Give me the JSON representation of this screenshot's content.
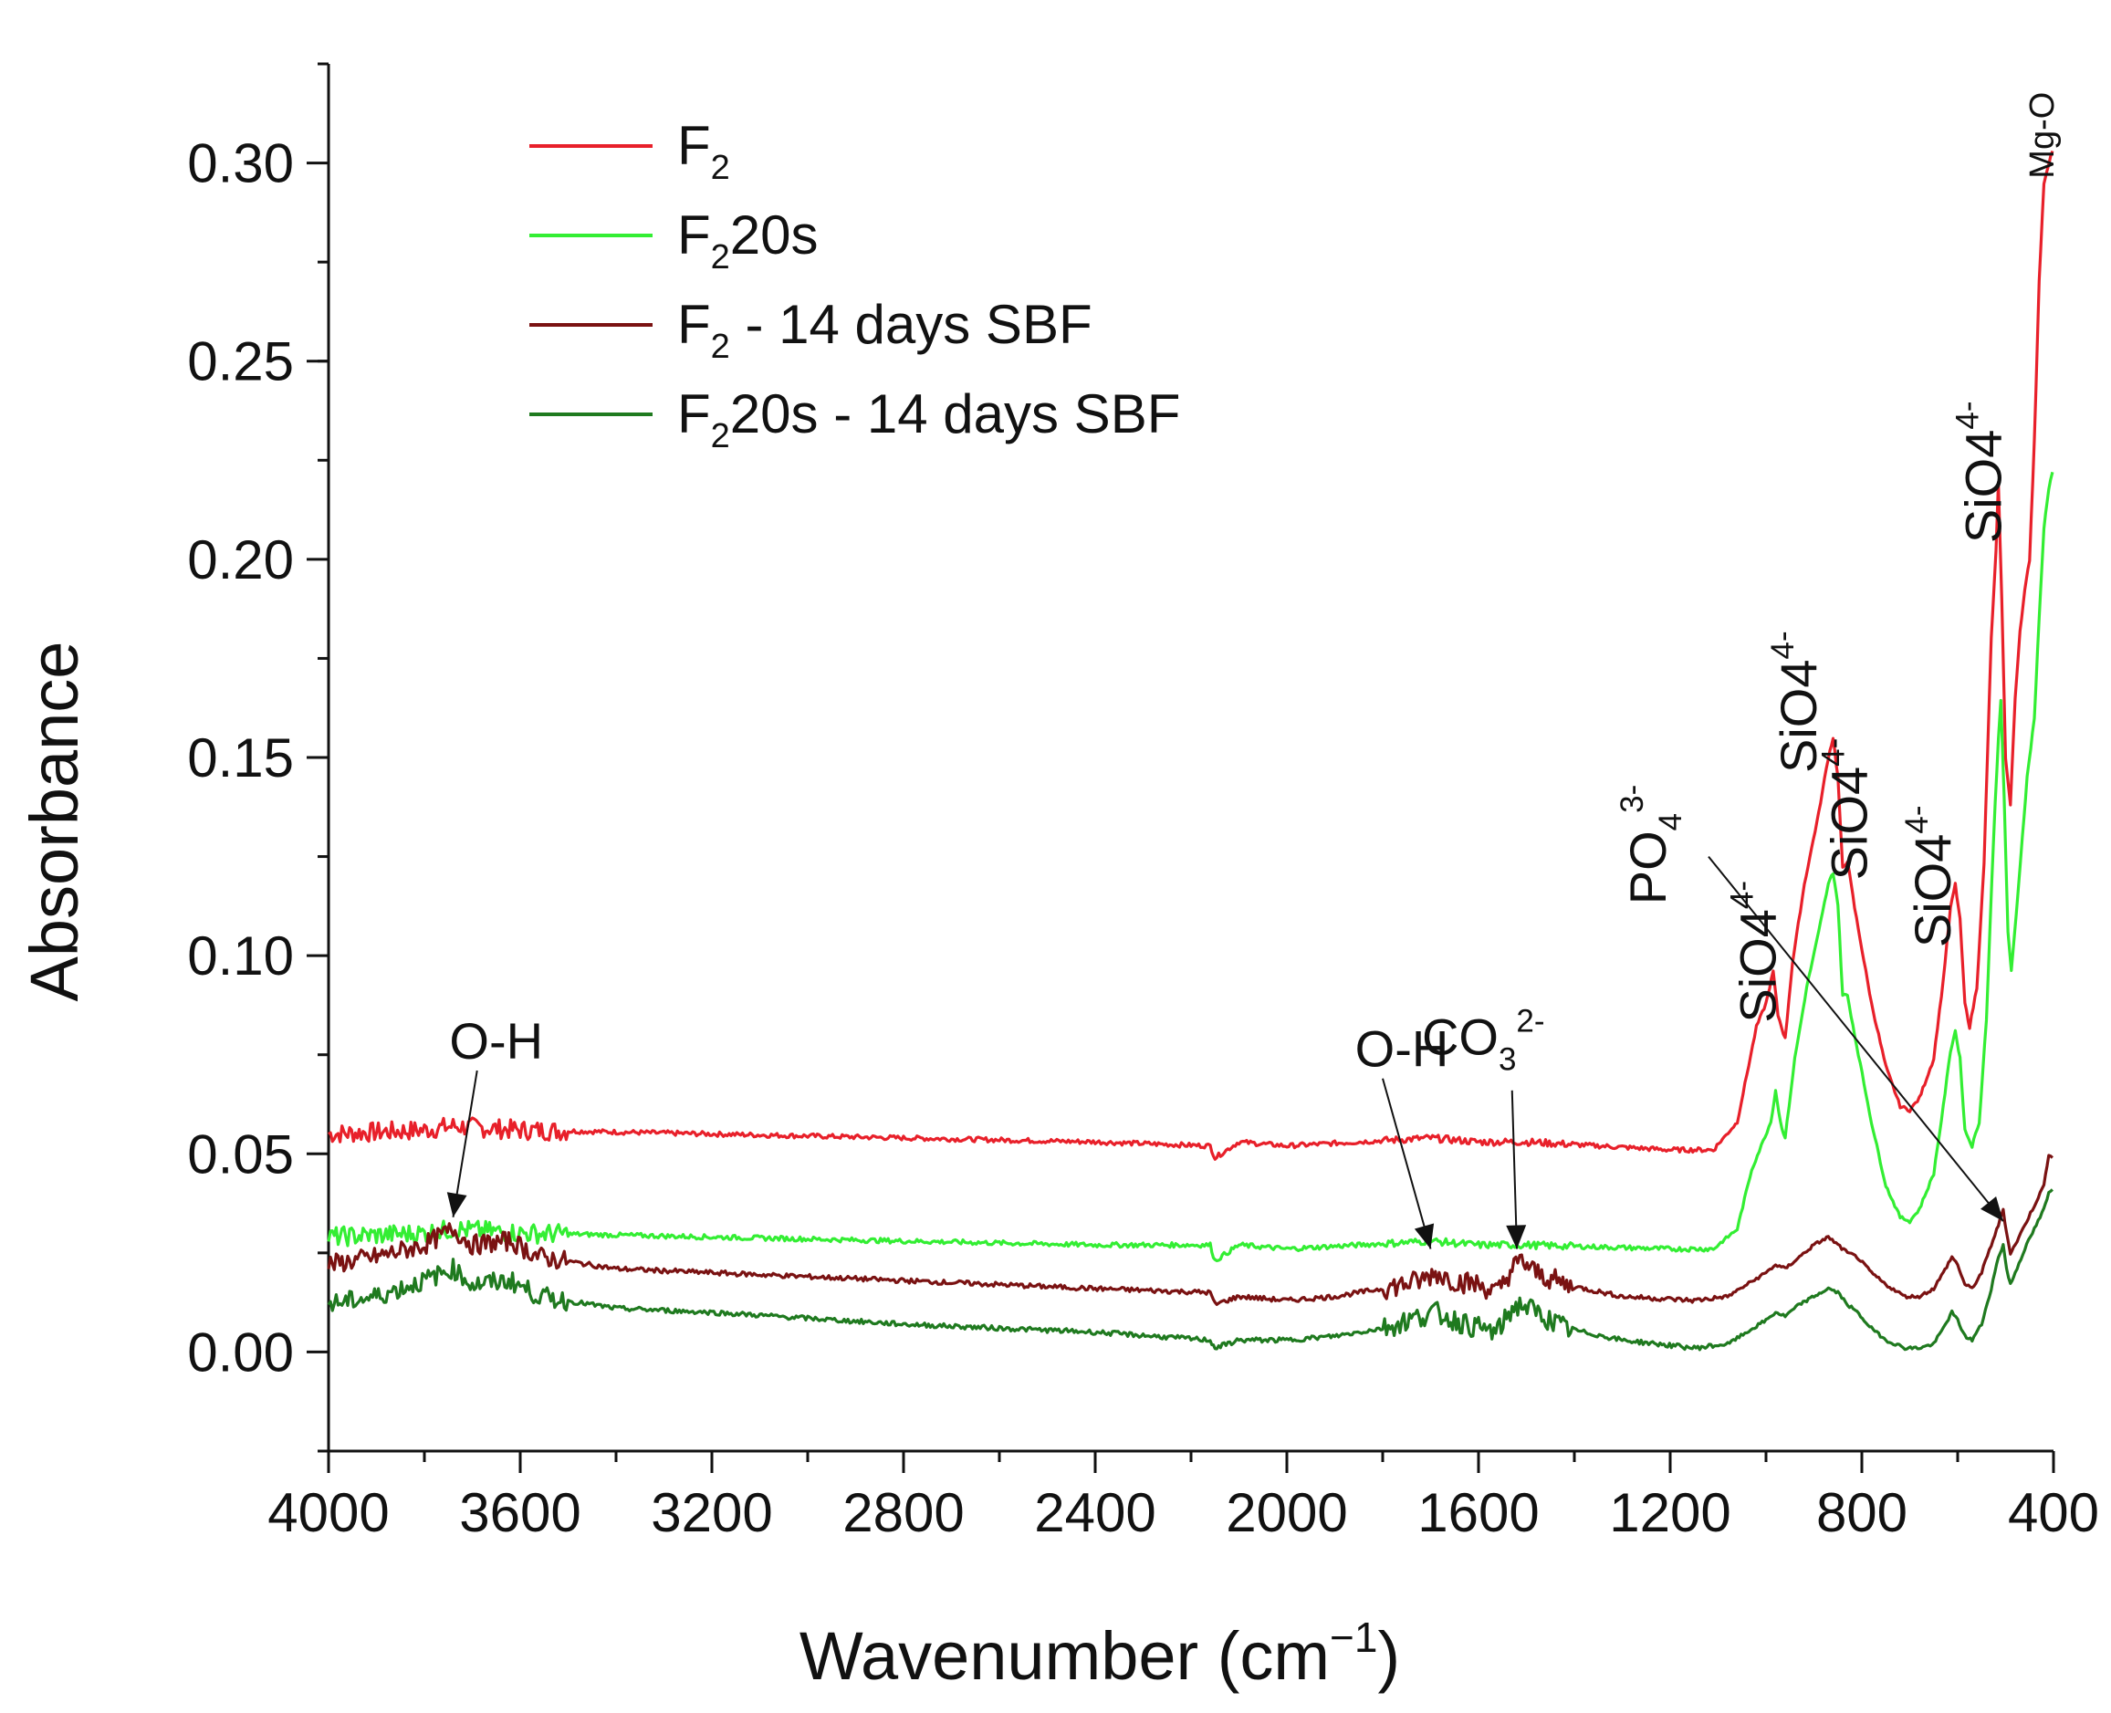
{
  "chart_data": {
    "type": "line",
    "title": "",
    "xlabel": "Wavenumber (cm",
    "xlabel_sup": "−1",
    "xlabel_close": ")",
    "ylabel": "Absorbance",
    "xlim": [
      4000,
      400
    ],
    "ylim": [
      -0.025,
      0.325
    ],
    "x_ticks": [
      4000,
      3600,
      3200,
      2800,
      2400,
      2000,
      1600,
      1200,
      800,
      400
    ],
    "x_tick_labels": [
      "4000",
      "3600",
      "3200",
      "2800",
      "2400",
      "2000",
      "1600",
      "1200",
      "800",
      "400"
    ],
    "y_ticks": [
      0.0,
      0.05,
      0.1,
      0.15,
      0.2,
      0.25,
      0.3
    ],
    "y_tick_labels": [
      "0.00",
      "0.05",
      "0.10",
      "0.15",
      "0.20",
      "0.25",
      "0.30"
    ],
    "legend_position": "top-left",
    "series": [
      {
        "name": "F2",
        "legend_main": "F",
        "legend_sub": "2",
        "legend_rest": "",
        "color": "#e8202a",
        "points": [
          [
            4000,
            0.055
          ],
          [
            3800,
            0.056
          ],
          [
            3740,
            0.057
          ],
          [
            3600,
            0.056
          ],
          [
            3200,
            0.055
          ],
          [
            2800,
            0.054
          ],
          [
            2400,
            0.053
          ],
          [
            2160,
            0.052
          ],
          [
            2150,
            0.049
          ],
          [
            2100,
            0.053
          ],
          [
            2000,
            0.052
          ],
          [
            1700,
            0.054
          ],
          [
            1600,
            0.053
          ],
          [
            1500,
            0.053
          ],
          [
            1200,
            0.051
          ],
          [
            1110,
            0.051
          ],
          [
            1060,
            0.058
          ],
          [
            1020,
            0.082
          ],
          [
            1000,
            0.088
          ],
          [
            985,
            0.096
          ],
          [
            975,
            0.085
          ],
          [
            960,
            0.079
          ],
          [
            945,
            0.098
          ],
          [
            920,
            0.118
          ],
          [
            890,
            0.136
          ],
          [
            870,
            0.15
          ],
          [
            860,
            0.155
          ],
          [
            850,
            0.145
          ],
          [
            840,
            0.122
          ],
          [
            830,
            0.124
          ],
          [
            815,
            0.112
          ],
          [
            780,
            0.088
          ],
          [
            750,
            0.072
          ],
          [
            720,
            0.062
          ],
          [
            700,
            0.061
          ],
          [
            680,
            0.064
          ],
          [
            650,
            0.074
          ],
          [
            630,
            0.094
          ],
          [
            615,
            0.112
          ],
          [
            605,
            0.118
          ],
          [
            595,
            0.109
          ],
          [
            585,
            0.088
          ],
          [
            575,
            0.082
          ],
          [
            560,
            0.092
          ],
          [
            545,
            0.123
          ],
          [
            530,
            0.18
          ],
          [
            520,
            0.202
          ],
          [
            515,
            0.219
          ],
          [
            508,
            0.19
          ],
          [
            500,
            0.15
          ],
          [
            490,
            0.138
          ],
          [
            480,
            0.165
          ],
          [
            470,
            0.182
          ],
          [
            460,
            0.192
          ],
          [
            450,
            0.2
          ],
          [
            440,
            0.23
          ],
          [
            430,
            0.27
          ],
          [
            420,
            0.295
          ],
          [
            410,
            0.3
          ],
          [
            402,
            0.303
          ]
        ]
      },
      {
        "name": "F220s",
        "legend_main": "F",
        "legend_sub": "2",
        "legend_rest": "20s",
        "color": "#33ee33",
        "points": [
          [
            4000,
            0.029
          ],
          [
            3800,
            0.03
          ],
          [
            3740,
            0.031
          ],
          [
            3600,
            0.03
          ],
          [
            3200,
            0.029
          ],
          [
            2800,
            0.028
          ],
          [
            2400,
            0.027
          ],
          [
            2160,
            0.027
          ],
          [
            2150,
            0.023
          ],
          [
            2100,
            0.027
          ],
          [
            2000,
            0.026
          ],
          [
            1700,
            0.028
          ],
          [
            1600,
            0.027
          ],
          [
            1500,
            0.027
          ],
          [
            1200,
            0.026
          ],
          [
            1110,
            0.026
          ],
          [
            1060,
            0.031
          ],
          [
            1030,
            0.046
          ],
          [
            1010,
            0.052
          ],
          [
            990,
            0.058
          ],
          [
            980,
            0.066
          ],
          [
            970,
            0.058
          ],
          [
            960,
            0.054
          ],
          [
            940,
            0.074
          ],
          [
            915,
            0.092
          ],
          [
            890,
            0.106
          ],
          [
            870,
            0.118
          ],
          [
            860,
            0.121
          ],
          [
            850,
            0.113
          ],
          [
            840,
            0.09
          ],
          [
            830,
            0.09
          ],
          [
            815,
            0.08
          ],
          [
            780,
            0.058
          ],
          [
            750,
            0.042
          ],
          [
            720,
            0.034
          ],
          [
            700,
            0.033
          ],
          [
            680,
            0.036
          ],
          [
            650,
            0.045
          ],
          [
            630,
            0.062
          ],
          [
            615,
            0.076
          ],
          [
            605,
            0.081
          ],
          [
            595,
            0.074
          ],
          [
            585,
            0.056
          ],
          [
            570,
            0.052
          ],
          [
            555,
            0.058
          ],
          [
            540,
            0.084
          ],
          [
            525,
            0.13
          ],
          [
            515,
            0.155
          ],
          [
            510,
            0.164
          ],
          [
            503,
            0.14
          ],
          [
            495,
            0.106
          ],
          [
            488,
            0.096
          ],
          [
            478,
            0.11
          ],
          [
            465,
            0.13
          ],
          [
            455,
            0.145
          ],
          [
            440,
            0.16
          ],
          [
            430,
            0.185
          ],
          [
            420,
            0.208
          ],
          [
            410,
            0.218
          ],
          [
            402,
            0.222
          ]
        ]
      },
      {
        "name": "F2 - 14 days SBF",
        "legend_main": "F",
        "legend_sub": "2",
        "legend_rest": " - 14 days SBF",
        "color": "#7a1212",
        "points": [
          [
            4000,
            0.022
          ],
          [
            3900,
            0.024
          ],
          [
            3800,
            0.027
          ],
          [
            3740,
            0.031
          ],
          [
            3700,
            0.027
          ],
          [
            3620,
            0.028
          ],
          [
            3560,
            0.024
          ],
          [
            3400,
            0.021
          ],
          [
            3200,
            0.02
          ],
          [
            2800,
            0.018
          ],
          [
            2400,
            0.016
          ],
          [
            2160,
            0.015
          ],
          [
            2150,
            0.012
          ],
          [
            2100,
            0.014
          ],
          [
            2000,
            0.013
          ],
          [
            1900,
            0.014
          ],
          [
            1800,
            0.016
          ],
          [
            1720,
            0.018
          ],
          [
            1690,
            0.02
          ],
          [
            1650,
            0.018
          ],
          [
            1600,
            0.017
          ],
          [
            1560,
            0.015
          ],
          [
            1530,
            0.021
          ],
          [
            1510,
            0.023
          ],
          [
            1480,
            0.02
          ],
          [
            1420,
            0.017
          ],
          [
            1300,
            0.014
          ],
          [
            1150,
            0.013
          ],
          [
            1080,
            0.014
          ],
          [
            1040,
            0.017
          ],
          [
            1000,
            0.02
          ],
          [
            980,
            0.022
          ],
          [
            960,
            0.021
          ],
          [
            930,
            0.024
          ],
          [
            900,
            0.027
          ],
          [
            870,
            0.029
          ],
          [
            850,
            0.027
          ],
          [
            830,
            0.025
          ],
          [
            810,
            0.024
          ],
          [
            780,
            0.02
          ],
          [
            750,
            0.017
          ],
          [
            710,
            0.014
          ],
          [
            680,
            0.014
          ],
          [
            650,
            0.016
          ],
          [
            630,
            0.02
          ],
          [
            612,
            0.024
          ],
          [
            600,
            0.022
          ],
          [
            585,
            0.017
          ],
          [
            570,
            0.016
          ],
          [
            550,
            0.02
          ],
          [
            530,
            0.027
          ],
          [
            515,
            0.032
          ],
          [
            505,
            0.036
          ],
          [
            498,
            0.03
          ],
          [
            490,
            0.025
          ],
          [
            480,
            0.027
          ],
          [
            460,
            0.032
          ],
          [
            440,
            0.037
          ],
          [
            420,
            0.042
          ],
          [
            410,
            0.05
          ],
          [
            402,
            0.049
          ]
        ]
      },
      {
        "name": "F220s - 14 days SBF",
        "legend_main": "F",
        "legend_sub": "2",
        "legend_rest": "20s - 14 days SBF",
        "color": "#1f7a1f",
        "points": [
          [
            4000,
            0.012
          ],
          [
            3900,
            0.014
          ],
          [
            3800,
            0.018
          ],
          [
            3740,
            0.021
          ],
          [
            3700,
            0.017
          ],
          [
            3620,
            0.018
          ],
          [
            3560,
            0.014
          ],
          [
            3400,
            0.011
          ],
          [
            3200,
            0.01
          ],
          [
            2800,
            0.007
          ],
          [
            2400,
            0.005
          ],
          [
            2160,
            0.003
          ],
          [
            2150,
            0.001
          ],
          [
            2100,
            0.003
          ],
          [
            2000,
            0.003
          ],
          [
            1900,
            0.004
          ],
          [
            1800,
            0.006
          ],
          [
            1720,
            0.009
          ],
          [
            1690,
            0.01
          ],
          [
            1650,
            0.008
          ],
          [
            1600,
            0.006
          ],
          [
            1560,
            0.005
          ],
          [
            1530,
            0.011
          ],
          [
            1510,
            0.012
          ],
          [
            1480,
            0.01
          ],
          [
            1420,
            0.006
          ],
          [
            1300,
            0.003
          ],
          [
            1150,
            0.001
          ],
          [
            1080,
            0.002
          ],
          [
            1040,
            0.005
          ],
          [
            1000,
            0.008
          ],
          [
            980,
            0.01
          ],
          [
            960,
            0.009
          ],
          [
            930,
            0.012
          ],
          [
            900,
            0.014
          ],
          [
            870,
            0.016
          ],
          [
            850,
            0.015
          ],
          [
            830,
            0.012
          ],
          [
            810,
            0.01
          ],
          [
            780,
            0.006
          ],
          [
            750,
            0.003
          ],
          [
            710,
            0.001
          ],
          [
            680,
            0.001
          ],
          [
            650,
            0.002
          ],
          [
            630,
            0.006
          ],
          [
            612,
            0.01
          ],
          [
            600,
            0.008
          ],
          [
            585,
            0.004
          ],
          [
            570,
            0.003
          ],
          [
            550,
            0.007
          ],
          [
            530,
            0.016
          ],
          [
            515,
            0.024
          ],
          [
            505,
            0.027
          ],
          [
            498,
            0.021
          ],
          [
            490,
            0.017
          ],
          [
            480,
            0.02
          ],
          [
            460,
            0.026
          ],
          [
            440,
            0.031
          ],
          [
            420,
            0.036
          ],
          [
            410,
            0.04
          ],
          [
            402,
            0.041
          ]
        ]
      }
    ],
    "annotations": [
      {
        "id": "oh-1",
        "text": "O-H",
        "sub": "",
        "sup": "",
        "x": 3650,
        "y": 0.074,
        "rotate": false,
        "arrow": {
          "from": [
            3690,
            0.071
          ],
          "to": [
            3740,
            0.034
          ]
        }
      },
      {
        "id": "oh-2",
        "text": "O-H",
        "sub": "",
        "sup": "",
        "x": 1760,
        "y": 0.072,
        "rotate": false,
        "arrow": {
          "from": [
            1800,
            0.069
          ],
          "to": [
            1700,
            0.026
          ]
        }
      },
      {
        "id": "co3",
        "text": "CO",
        "sub": "3",
        "sup": "2-",
        "x": 1590,
        "y": 0.075,
        "rotate": false,
        "arrow": {
          "from": [
            1530,
            0.066
          ],
          "to": [
            1520,
            0.026
          ]
        }
      },
      {
        "id": "po4",
        "text": "PO",
        "sub": "4",
        "sup": "3-",
        "x": 1210,
        "y": 0.128,
        "rotate": true,
        "arrow": {
          "from": [
            1120,
            0.125
          ],
          "to": [
            505,
            0.033
          ]
        }
      },
      {
        "id": "sio4-1",
        "text": "SiO4",
        "sub": "",
        "sup": "4-",
        "x": 980,
        "y": 0.101,
        "rotate": true,
        "arrow": null
      },
      {
        "id": "sio4-2",
        "text": "SiO4",
        "sub": "",
        "sup": "4-",
        "x": 895,
        "y": 0.164,
        "rotate": true,
        "arrow": null
      },
      {
        "id": "sio4-3",
        "text": "SiO4",
        "sub": "",
        "sup": "4-",
        "x": 790,
        "y": 0.137,
        "rotate": true,
        "arrow": null
      },
      {
        "id": "sio4-4",
        "text": "SiO4",
        "sub": "",
        "sup": "4-",
        "x": 615,
        "y": 0.12,
        "rotate": true,
        "arrow": null
      },
      {
        "id": "sio4-5",
        "text": "SiO4",
        "sub": "",
        "sup": "4-",
        "x": 510,
        "y": 0.222,
        "rotate": true,
        "arrow": null
      },
      {
        "id": "mg-o",
        "text": "Mg-O",
        "sub": "",
        "sup": "",
        "x": 400,
        "y": 0.307,
        "rotate": true,
        "small": true,
        "arrow": null
      }
    ]
  }
}
